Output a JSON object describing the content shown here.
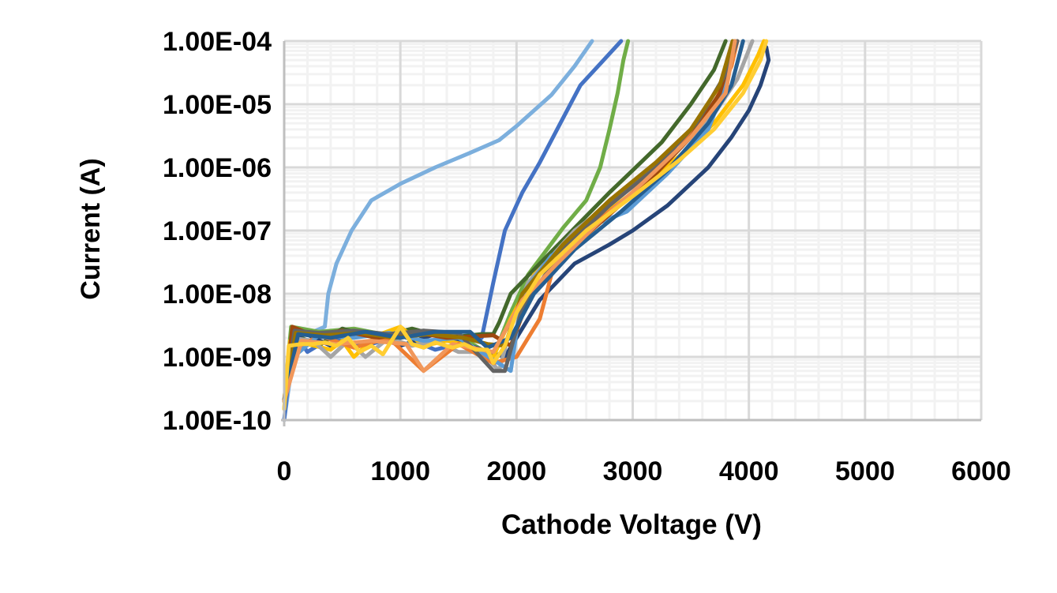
{
  "chart_data": {
    "type": "line",
    "title": "",
    "xlabel": "Cathode Voltage (V)",
    "ylabel": "Current (A)",
    "xlim": [
      0,
      6000
    ],
    "ylim": [
      1e-10,
      0.0001
    ],
    "yscale": "log",
    "grid": true,
    "legend": "none",
    "x_ticks": [
      "0",
      "1000",
      "2000",
      "3000",
      "4000",
      "5000",
      "6000"
    ],
    "y_ticks": [
      "1.00E-10",
      "1.00E-09",
      "1.00E-08",
      "1.00E-07",
      "1.00E-06",
      "1.00E-05",
      "1.00E-04"
    ],
    "series": [
      {
        "color": "#7CAFDD",
        "points": [
          [
            0,
            1e-10
          ],
          [
            100,
            2e-09
          ],
          [
            250,
            2.5e-09
          ],
          [
            350,
            3e-09
          ],
          [
            380,
            1e-08
          ],
          [
            450,
            3e-08
          ],
          [
            580,
            1e-07
          ],
          [
            750,
            3e-07
          ],
          [
            1000,
            5.5e-07
          ],
          [
            1300,
            1e-06
          ],
          [
            1600,
            1.7e-06
          ],
          [
            1850,
            2.7e-06
          ],
          [
            2000,
            4.5e-06
          ],
          [
            2300,
            1.4e-05
          ],
          [
            2500,
            4e-05
          ],
          [
            2650,
            0.0001
          ]
        ]
      },
      {
        "color": "#4472C4",
        "points": [
          [
            0,
            1e-10
          ],
          [
            80,
            2.5e-09
          ],
          [
            200,
            1.2e-09
          ],
          [
            400,
            2e-09
          ],
          [
            700,
            1.5e-09
          ],
          [
            1000,
            2.2e-09
          ],
          [
            1300,
            1.3e-09
          ],
          [
            1600,
            1.8e-09
          ],
          [
            1700,
            2e-09
          ],
          [
            1800,
            1.5e-08
          ],
          [
            1900,
            1e-07
          ],
          [
            2050,
            4e-07
          ],
          [
            2200,
            1.2e-06
          ],
          [
            2400,
            6e-06
          ],
          [
            2550,
            2e-05
          ],
          [
            2750,
            5e-05
          ],
          [
            2900,
            0.0001
          ]
        ]
      },
      {
        "color": "#70AD47",
        "points": [
          [
            0,
            2e-10
          ],
          [
            60,
            3e-09
          ],
          [
            300,
            2.5e-09
          ],
          [
            600,
            2.8e-09
          ],
          [
            900,
            2.2e-09
          ],
          [
            1200,
            2.6e-09
          ],
          [
            1500,
            2.2e-09
          ],
          [
            1800,
            1e-09
          ],
          [
            1950,
            5e-09
          ],
          [
            2100,
            2e-08
          ],
          [
            2400,
            1.1e-07
          ],
          [
            2600,
            3e-07
          ],
          [
            2720,
            1e-06
          ],
          [
            2800,
            4e-06
          ],
          [
            2870,
            1.5e-05
          ],
          [
            2920,
            5e-05
          ],
          [
            2960,
            0.0001
          ]
        ]
      },
      {
        "color": "#43682B",
        "points": [
          [
            0,
            2e-10
          ],
          [
            100,
            2.2e-09
          ],
          [
            300,
            1.5e-09
          ],
          [
            500,
            2.8e-09
          ],
          [
            800,
            2e-09
          ],
          [
            1100,
            2.8e-09
          ],
          [
            1400,
            2e-09
          ],
          [
            1700,
            2.3e-09
          ],
          [
            1800,
            2.3e-09
          ],
          [
            1850,
            3.5e-09
          ],
          [
            1950,
            1e-08
          ],
          [
            2200,
            3e-08
          ],
          [
            2500,
            1.1e-07
          ],
          [
            2800,
            4e-07
          ],
          [
            3000,
            9e-07
          ],
          [
            3250,
            2.5e-06
          ],
          [
            3500,
            1e-05
          ],
          [
            3700,
            3.5e-05
          ],
          [
            3800,
            0.0001
          ]
        ]
      },
      {
        "color": "#264478",
        "points": [
          [
            0,
            2e-10
          ],
          [
            150,
            2.5e-09
          ],
          [
            400,
            1.5e-09
          ],
          [
            700,
            2.5e-09
          ],
          [
            1000,
            1.5e-09
          ],
          [
            1300,
            2.3e-09
          ],
          [
            1600,
            1.5e-09
          ],
          [
            1900,
            1e-09
          ],
          [
            2000,
            2e-09
          ],
          [
            2200,
            8e-09
          ],
          [
            2500,
            3e-08
          ],
          [
            2800,
            6e-08
          ],
          [
            3000,
            1e-07
          ],
          [
            3300,
            2.5e-07
          ],
          [
            3650,
            1e-06
          ],
          [
            3850,
            3e-06
          ],
          [
            4000,
            8e-06
          ],
          [
            4100,
            2e-05
          ],
          [
            4170,
            5e-05
          ],
          [
            4150,
            8e-05
          ]
        ]
      },
      {
        "color": "#FFC000",
        "points": [
          [
            0,
            2e-10
          ],
          [
            50,
            1.8e-09
          ],
          [
            200,
            1.6e-09
          ],
          [
            400,
            1.3e-09
          ],
          [
            500,
            1.8e-09
          ],
          [
            600,
            1e-09
          ],
          [
            800,
            2.2e-09
          ],
          [
            1000,
            3e-09
          ],
          [
            1200,
            1.5e-09
          ],
          [
            1400,
            1.8e-09
          ],
          [
            1600,
            1.5e-09
          ],
          [
            1800,
            1e-09
          ],
          [
            1950,
            4e-09
          ],
          [
            2150,
            2e-08
          ],
          [
            2500,
            8e-08
          ],
          [
            3000,
            4e-07
          ],
          [
            3400,
            1.5e-06
          ],
          [
            3700,
            5e-06
          ],
          [
            3950,
            2e-05
          ],
          [
            4080,
            6e-05
          ],
          [
            4130,
            0.0001
          ]
        ]
      },
      {
        "color": "#A5A5A5",
        "points": [
          [
            0,
            1.5e-10
          ],
          [
            60,
            2e-09
          ],
          [
            250,
            1.8e-09
          ],
          [
            400,
            1e-09
          ],
          [
            550,
            1.8e-09
          ],
          [
            700,
            1e-09
          ],
          [
            900,
            2e-09
          ],
          [
            1100,
            1.5e-09
          ],
          [
            1300,
            1.8e-09
          ],
          [
            1500,
            1.2e-09
          ],
          [
            1700,
            1.2e-09
          ],
          [
            1850,
            6e-10
          ],
          [
            1950,
            3e-09
          ],
          [
            2100,
            1.5e-08
          ],
          [
            2500,
            1e-07
          ],
          [
            3000,
            5e-07
          ],
          [
            3400,
            2e-06
          ],
          [
            3700,
            7e-06
          ],
          [
            3900,
            2.5e-05
          ],
          [
            4030,
            0.0001
          ]
        ]
      },
      {
        "color": "#ED7D31",
        "points": [
          [
            0,
            2e-10
          ],
          [
            100,
            1.3e-09
          ],
          [
            300,
            2.2e-09
          ],
          [
            600,
            1.4e-09
          ],
          [
            900,
            2e-09
          ],
          [
            1200,
            6e-10
          ],
          [
            1500,
            1.6e-09
          ],
          [
            1800,
            8e-10
          ],
          [
            2000,
            1e-09
          ],
          [
            2200,
            4e-09
          ],
          [
            2300,
            2e-08
          ],
          [
            2600,
            1e-07
          ],
          [
            3000,
            4e-07
          ],
          [
            3400,
            2e-06
          ],
          [
            3700,
            1e-05
          ],
          [
            3850,
            4e-05
          ],
          [
            3900,
            0.0001
          ]
        ]
      },
      {
        "color": "#5B9BD5",
        "points": [
          [
            0,
            2e-10
          ],
          [
            80,
            1e-09
          ],
          [
            300,
            2.2e-09
          ],
          [
            600,
            2e-09
          ],
          [
            900,
            2.4e-09
          ],
          [
            1200,
            1.8e-09
          ],
          [
            1500,
            2e-09
          ],
          [
            1950,
            6e-10
          ],
          [
            2050,
            1e-08
          ],
          [
            2300,
            4e-08
          ],
          [
            2700,
            1.3e-07
          ],
          [
            2950,
            2e-07
          ],
          [
            3300,
            8e-07
          ],
          [
            3650,
            4e-06
          ],
          [
            3800,
            2e-05
          ],
          [
            3880,
            0.0001
          ]
        ]
      },
      {
        "color": "#9E480E",
        "points": [
          [
            0,
            2e-10
          ],
          [
            70,
            3e-09
          ],
          [
            250,
            2.2e-09
          ],
          [
            500,
            2.6e-09
          ],
          [
            800,
            2e-09
          ],
          [
            1100,
            2.5e-09
          ],
          [
            1400,
            2e-09
          ],
          [
            1800,
            2.2e-09
          ],
          [
            1950,
            1.5e-09
          ],
          [
            2100,
            8e-09
          ],
          [
            2400,
            4e-08
          ],
          [
            2800,
            1.8e-07
          ],
          [
            3200,
            8e-07
          ],
          [
            3500,
            3e-06
          ],
          [
            3750,
            1.5e-05
          ],
          [
            3880,
            0.0001
          ]
        ]
      },
      {
        "color": "#636363",
        "points": [
          [
            0,
            2e-10
          ],
          [
            90,
            2.6e-09
          ],
          [
            300,
            2.4e-09
          ],
          [
            600,
            2.6e-09
          ],
          [
            900,
            2.3e-09
          ],
          [
            1200,
            2.6e-09
          ],
          [
            1500,
            2.4e-09
          ],
          [
            1800,
            6e-10
          ],
          [
            1900,
            6e-10
          ],
          [
            2050,
            6e-09
          ],
          [
            2400,
            5e-08
          ],
          [
            2800,
            2.5e-07
          ],
          [
            3200,
            1e-06
          ],
          [
            3550,
            5e-06
          ],
          [
            3800,
            3e-05
          ],
          [
            3900,
            0.0001
          ]
        ]
      },
      {
        "color": "#997300",
        "points": [
          [
            0,
            2e-10
          ],
          [
            100,
            2.4e-09
          ],
          [
            350,
            2.2e-09
          ],
          [
            650,
            2.4e-09
          ],
          [
            950,
            2e-09
          ],
          [
            1250,
            2.3e-09
          ],
          [
            1550,
            2e-09
          ],
          [
            1750,
            1.6e-09
          ],
          [
            1900,
            1.5e-09
          ],
          [
            2050,
            1e-08
          ],
          [
            2400,
            6e-08
          ],
          [
            2800,
            3e-07
          ],
          [
            3200,
            1.2e-06
          ],
          [
            3500,
            4e-06
          ],
          [
            3750,
            2e-05
          ],
          [
            3860,
            0.0001
          ]
        ]
      },
      {
        "color": "#255E91",
        "points": [
          [
            0,
            2e-10
          ],
          [
            120,
            2.3e-09
          ],
          [
            400,
            2e-09
          ],
          [
            700,
            2.5e-09
          ],
          [
            1000,
            2e-09
          ],
          [
            1300,
            2.5e-09
          ],
          [
            1600,
            2.5e-09
          ],
          [
            1750,
            1.4e-09
          ],
          [
            1950,
            2e-09
          ],
          [
            2150,
            1e-08
          ],
          [
            2500,
            5e-08
          ],
          [
            2900,
            2e-07
          ],
          [
            3300,
            9e-07
          ],
          [
            3650,
            5e-06
          ],
          [
            3850,
            2e-05
          ],
          [
            3950,
            0.0001
          ]
        ]
      },
      {
        "color": "#F1975A",
        "points": [
          [
            0,
            2e-10
          ],
          [
            150,
            1.8e-09
          ],
          [
            450,
            1.6e-09
          ],
          [
            750,
            1.8e-09
          ],
          [
            1050,
            1.6e-09
          ],
          [
            1200,
            6e-10
          ],
          [
            1450,
            1.6e-09
          ],
          [
            1800,
            1.2e-09
          ],
          [
            2050,
            8e-09
          ],
          [
            2350,
            3e-08
          ],
          [
            2700,
            1.3e-07
          ],
          [
            3100,
            6e-07
          ],
          [
            3500,
            3e-06
          ],
          [
            3800,
            1.5e-05
          ],
          [
            3880,
            0.0001
          ]
        ]
      },
      {
        "color": "#FFCD33",
        "points": [
          [
            0,
            1.5e-10
          ],
          [
            40,
            1.5e-09
          ],
          [
            150,
            1.6e-09
          ],
          [
            250,
            1.6e-09
          ],
          [
            350,
            1.7e-09
          ],
          [
            450,
            1.5e-09
          ],
          [
            550,
            2e-09
          ],
          [
            650,
            1.2e-09
          ],
          [
            750,
            1.5e-09
          ],
          [
            850,
            1.1e-09
          ],
          [
            1000,
            3e-09
          ],
          [
            1100,
            1.6e-09
          ],
          [
            1200,
            1.4e-09
          ],
          [
            1300,
            1.7e-09
          ],
          [
            1450,
            1.4e-09
          ],
          [
            1550,
            1.6e-09
          ],
          [
            1650,
            1.3e-09
          ],
          [
            1750,
            1.3e-09
          ],
          [
            1800,
            8e-10
          ],
          [
            1900,
            1.5e-09
          ],
          [
            2000,
            5e-09
          ],
          [
            2200,
            2e-08
          ],
          [
            2600,
            1e-07
          ],
          [
            3000,
            3.5e-07
          ],
          [
            3400,
            1.3e-06
          ],
          [
            3700,
            4e-06
          ],
          [
            3950,
            1.5e-05
          ],
          [
            4100,
            5e-05
          ],
          [
            4150,
            0.0001
          ]
        ]
      }
    ]
  }
}
